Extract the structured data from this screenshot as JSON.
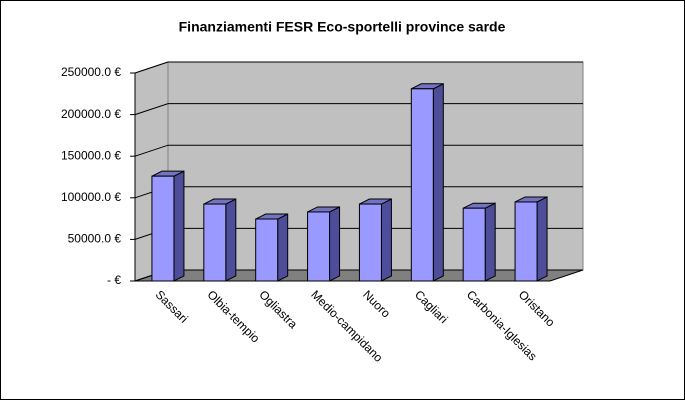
{
  "chart_data": {
    "type": "bar3d",
    "title": "Finanziamenti FESR Eco-sportelli province sarde",
    "categories": [
      "Sassari",
      "Olbia-tempio",
      "Ogliastra",
      "Medio-campidano",
      "Nuoro",
      "Cagliari",
      "Carbonia-Iglesias",
      "Oristano"
    ],
    "values": [
      126000,
      92500,
      74500,
      83000,
      92500,
      231000,
      87500,
      95000
    ],
    "color": "#9999ff",
    "ylim": [
      0,
      250000
    ],
    "yticks": [
      {
        "value": 0,
        "label": "- €"
      },
      {
        "value": 50000,
        "label": "50000.0 €"
      },
      {
        "value": 100000,
        "label": "100000.0 €"
      },
      {
        "value": 150000,
        "label": "150000.0 €"
      },
      {
        "value": 200000,
        "label": "200000.0 €"
      },
      {
        "value": 250000,
        "label": "250000.0 €"
      }
    ],
    "grid": true
  }
}
